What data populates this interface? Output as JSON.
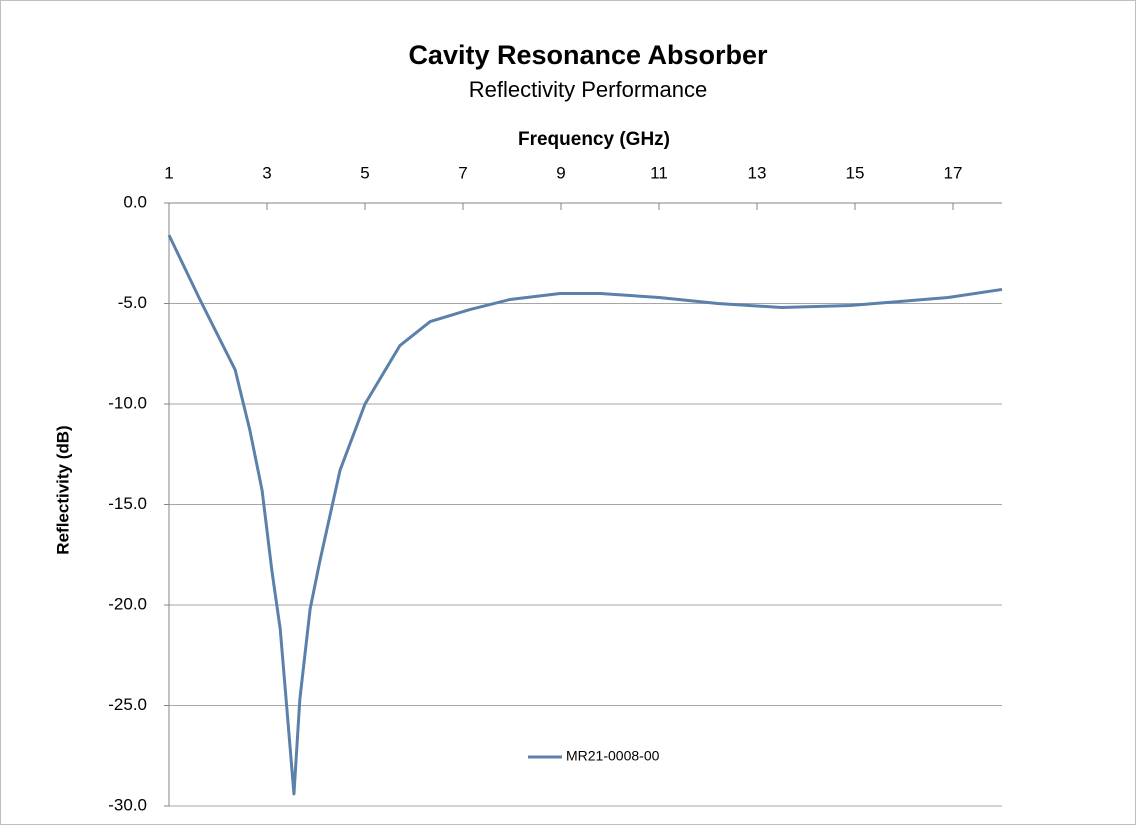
{
  "chart_data": {
    "type": "line",
    "title": "Cavity Resonance Absorber",
    "subtitle": "Reflectivity Performance",
    "x_label": "Frequency (GHz)",
    "y_label": "Reflectivity (dB)",
    "xlim": [
      1,
      18
    ],
    "xticks": [
      1,
      3,
      5,
      7,
      9,
      11,
      13,
      15,
      17
    ],
    "ylim": [
      -30,
      0
    ],
    "yticks": [
      {
        "value": 0,
        "label": "0.0"
      },
      {
        "value": -5,
        "label": "-5.0"
      },
      {
        "value": -10,
        "label": "-10.0"
      },
      {
        "value": -15,
        "label": "-15.0"
      },
      {
        "value": -20,
        "label": "-20.0"
      },
      {
        "value": -25,
        "label": "-25.0"
      },
      {
        "value": -30,
        "label": "-30.0"
      }
    ],
    "grid": true,
    "legend": "bottom",
    "series": [
      {
        "name": "MR21-0008-00",
        "color": "#5b80aa",
        "x": [
          1,
          1.63,
          2.35,
          2.65,
          2.9,
          3.1,
          3.27,
          3.39,
          3.55,
          3.67,
          3.88,
          4.08,
          4.49,
          5,
          5.71,
          6.33,
          7.14,
          7.96,
          8.98,
          9.8,
          11,
          12.2,
          13.5,
          14.9,
          16.9,
          18
        ],
        "values": [
          -1.6,
          -4.8,
          -8.3,
          -11.3,
          -14.3,
          -18.3,
          -21.2,
          -24.7,
          -29.4,
          -24.7,
          -20.2,
          -17.8,
          -13.3,
          -10.0,
          -7.1,
          -5.9,
          -5.3,
          -4.8,
          -4.5,
          -4.5,
          -4.7,
          -5.0,
          -5.2,
          -5.1,
          -4.7,
          -4.3
        ]
      }
    ]
  }
}
